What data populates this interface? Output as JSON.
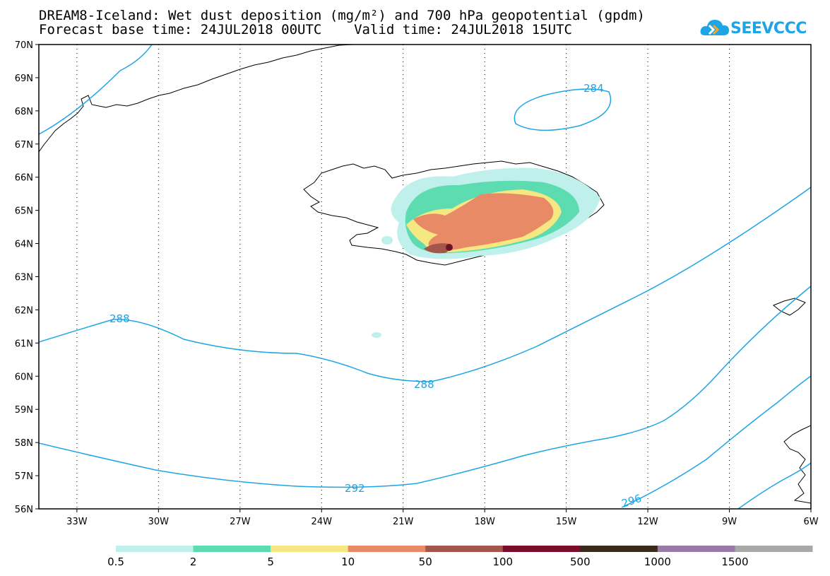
{
  "title": {
    "line1": "DREAM8-Iceland: Wet dust deposition (mg/m²) and 700 hPa geopotential (gpdm)",
    "line2": "Forecast base time: 24JUL2018 00UTC    Valid time: 24JUL2018 15UTC"
  },
  "logo": {
    "text": "SEEVCCC",
    "color": "#1ea5e6"
  },
  "axes": {
    "lat_labels": [
      "70N",
      "69N",
      "68N",
      "67N",
      "66N",
      "65N",
      "64N",
      "63N",
      "62N",
      "61N",
      "60N",
      "59N",
      "58N",
      "57N",
      "56N"
    ],
    "lon_labels": [
      "33W",
      "30W",
      "27W",
      "24W",
      "21W",
      "18W",
      "15W",
      "12W",
      "9W",
      "6W"
    ]
  },
  "contour_labels": [
    "284",
    "288",
    "288",
    "292",
    "296"
  ],
  "colorbar": {
    "levels": [
      "0.5",
      "2",
      "5",
      "10",
      "50",
      "100",
      "500",
      "1000",
      "1500"
    ],
    "colors": [
      "#bff0ec",
      "#5cdcb0",
      "#f5e882",
      "#e88a66",
      "#a3574a",
      "#7a0d2a",
      "#3a2a1c",
      "#9a7aa8",
      "#a8a8a8"
    ]
  },
  "contour_color": "#1ea5e6"
}
